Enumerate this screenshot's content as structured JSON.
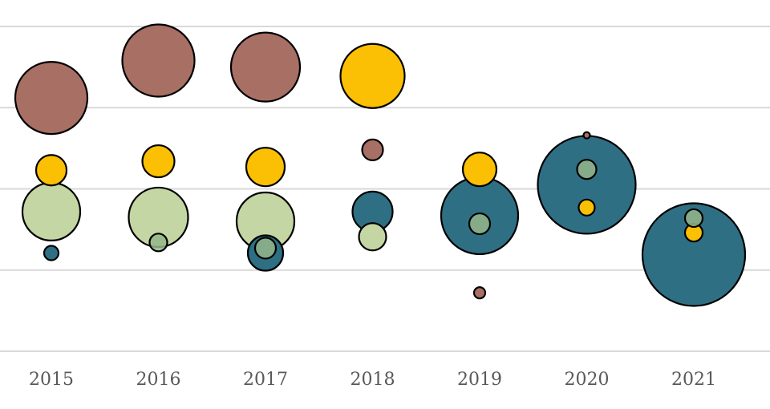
{
  "chart_data": {
    "type": "bubble",
    "title": "",
    "xlabel": "",
    "ylabel": "",
    "categories": [
      "2015",
      "2016",
      "2017",
      "2018",
      "2019",
      "2020",
      "2021"
    ],
    "ylim": [
      0,
      4
    ],
    "gridlines": [
      0,
      1,
      2,
      3,
      4
    ],
    "grid": true,
    "legend": "none",
    "colors": {
      "brown": "#a86f65",
      "yellow": "#fbbf04",
      "lightgreen": "#c4d6a4",
      "teal": "#2f6f84",
      "sage": "#94b688"
    },
    "series": [
      {
        "name": "brown",
        "points": [
          {
            "x": "2015",
            "y": 3.12,
            "size": 45
          },
          {
            "x": "2016",
            "y": 3.58,
            "size": 45
          },
          {
            "x": "2017",
            "y": 3.5,
            "size": 43
          },
          {
            "x": "2018",
            "y": 2.48,
            "size": 13
          },
          {
            "x": "2019",
            "y": 0.72,
            "size": 7
          },
          {
            "x": "2020",
            "y": 2.66,
            "size": 4
          }
        ]
      },
      {
        "name": "yellow",
        "points": [
          {
            "x": "2015",
            "y": 2.23,
            "size": 19
          },
          {
            "x": "2016",
            "y": 2.34,
            "size": 20
          },
          {
            "x": "2017",
            "y": 2.27,
            "size": 24
          },
          {
            "x": "2018",
            "y": 3.39,
            "size": 40
          },
          {
            "x": "2019",
            "y": 2.24,
            "size": 21
          },
          {
            "x": "2020",
            "y": 1.77,
            "size": 10
          },
          {
            "x": "2021",
            "y": 1.46,
            "size": 11
          }
        ]
      },
      {
        "name": "lightgreen",
        "points": [
          {
            "x": "2015",
            "y": 1.72,
            "size": 36
          },
          {
            "x": "2016",
            "y": 1.65,
            "size": 37
          },
          {
            "x": "2017",
            "y": 1.6,
            "size": 36
          },
          {
            "x": "2018",
            "y": 1.41,
            "size": 17
          }
        ]
      },
      {
        "name": "teal",
        "points": [
          {
            "x": "2015",
            "y": 1.21,
            "size": 9
          },
          {
            "x": "2017",
            "y": 1.21,
            "size": 22
          },
          {
            "x": "2018",
            "y": 1.72,
            "size": 25
          },
          {
            "x": "2019",
            "y": 1.67,
            "size": 48
          },
          {
            "x": "2020",
            "y": 2.05,
            "size": 61
          },
          {
            "x": "2021",
            "y": 1.19,
            "size": 64
          }
        ]
      },
      {
        "name": "sage",
        "points": [
          {
            "x": "2016",
            "y": 1.34,
            "size": 11
          },
          {
            "x": "2017",
            "y": 1.27,
            "size": 13
          },
          {
            "x": "2019",
            "y": 1.57,
            "size": 13
          },
          {
            "x": "2020",
            "y": 2.24,
            "size": 12
          },
          {
            "x": "2021",
            "y": 1.64,
            "size": 11
          }
        ]
      }
    ]
  }
}
